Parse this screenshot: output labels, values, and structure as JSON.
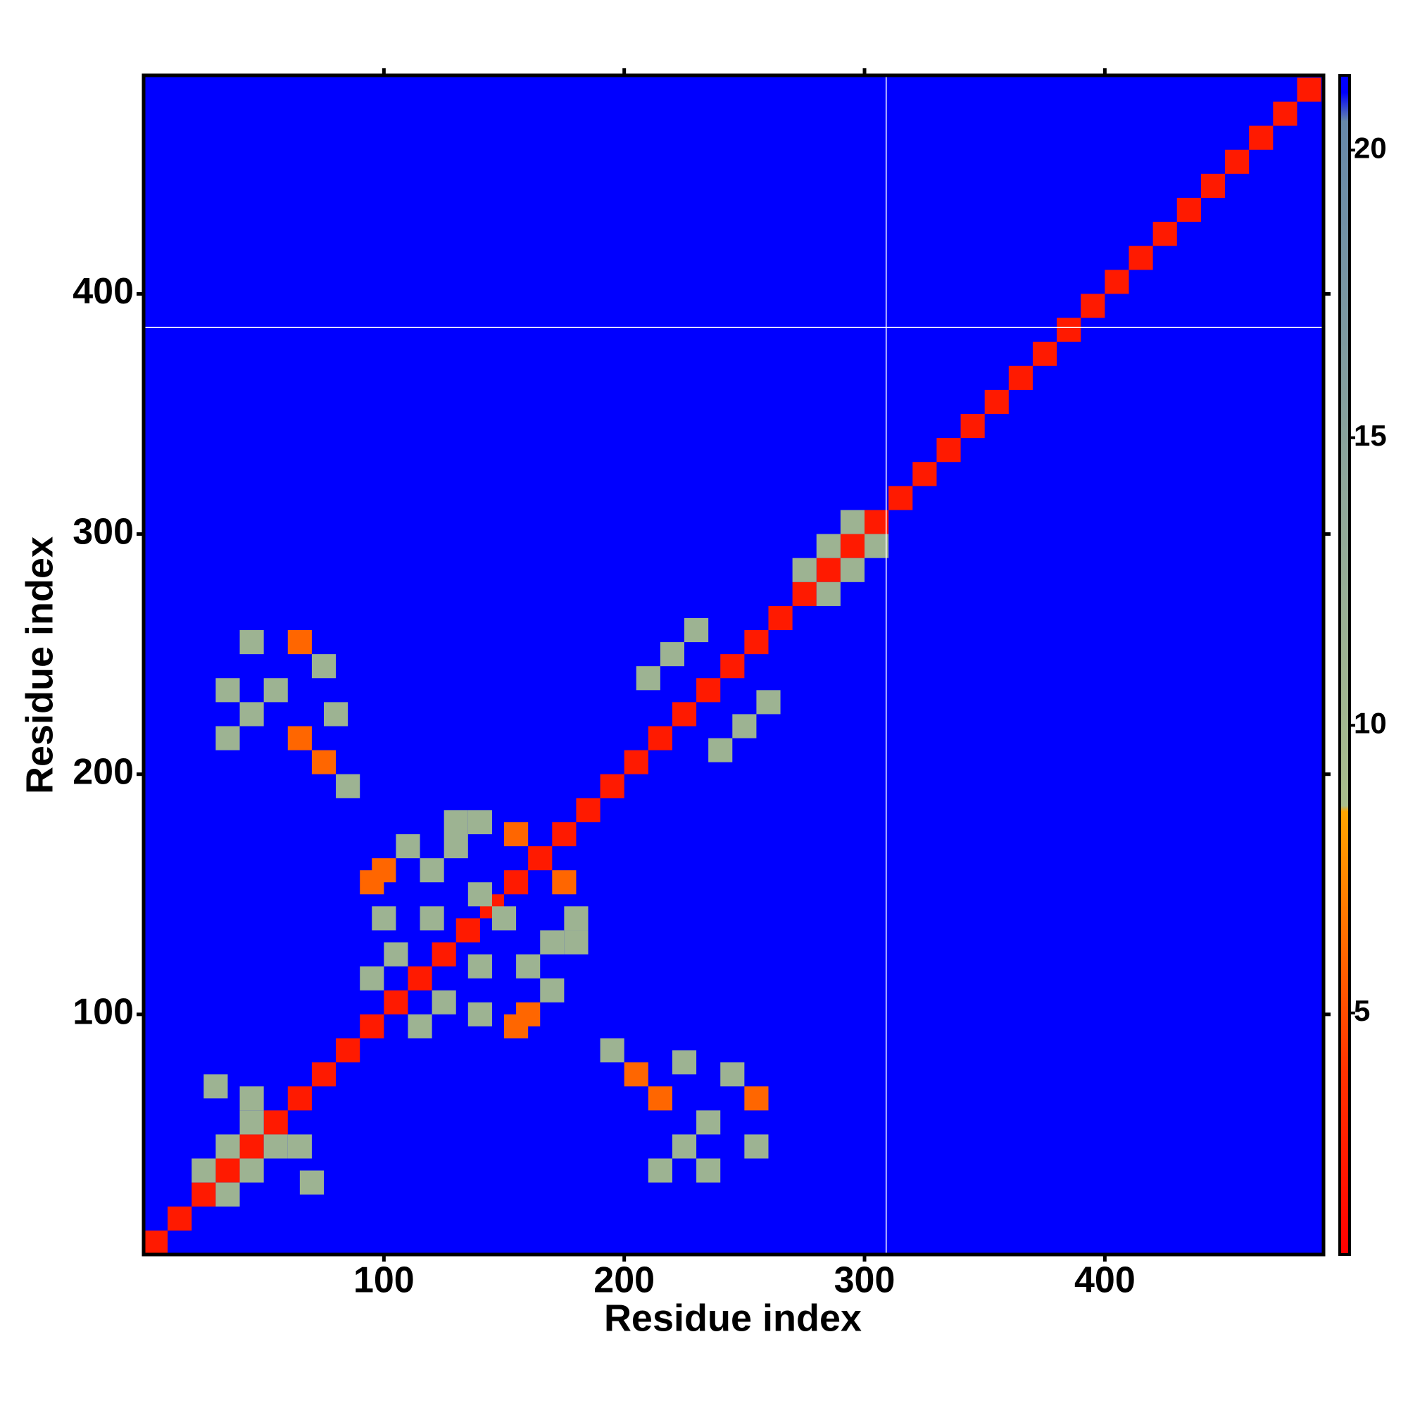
{
  "chart_data": {
    "type": "heatmap",
    "xlabel": "Residue index",
    "ylabel": "Residue index",
    "xlim": [
      0,
      491
    ],
    "ylim": [
      0,
      491
    ],
    "xticks": [
      100,
      200,
      300,
      400
    ],
    "yticks": [
      100,
      200,
      300,
      400
    ],
    "background": 21,
    "colorscale": [
      [
        0,
        "#ff0000"
      ],
      [
        4,
        "#ff3300"
      ],
      [
        8.5,
        "#ffa500"
      ],
      [
        8.6,
        "#a9bd8c"
      ],
      [
        14,
        "#8fa79a"
      ],
      [
        20.5,
        "#6688aa"
      ],
      [
        21,
        "#0000ff"
      ]
    ],
    "clim": [
      0.8,
      21.3
    ],
    "cticks": [
      5,
      10,
      15,
      20
    ],
    "x_gaps": [
      309
    ],
    "y_gaps": [
      386
    ],
    "cells": [
      [
        5,
        5,
        2
      ],
      [
        15,
        15,
        2
      ],
      [
        25,
        25,
        2
      ],
      [
        35,
        35,
        2
      ],
      [
        45,
        45,
        2
      ],
      [
        55,
        55,
        2
      ],
      [
        65,
        65,
        2
      ],
      [
        75,
        75,
        2
      ],
      [
        85,
        85,
        2
      ],
      [
        95,
        95,
        2
      ],
      [
        105,
        105,
        2
      ],
      [
        115,
        115,
        2
      ],
      [
        125,
        125,
        2
      ],
      [
        135,
        135,
        2
      ],
      [
        145,
        145,
        2
      ],
      [
        155,
        155,
        2
      ],
      [
        165,
        165,
        2
      ],
      [
        175,
        175,
        2
      ],
      [
        185,
        185,
        2
      ],
      [
        195,
        195,
        2
      ],
      [
        205,
        205,
        2
      ],
      [
        215,
        215,
        2
      ],
      [
        225,
        225,
        2
      ],
      [
        235,
        235,
        2
      ],
      [
        245,
        245,
        2
      ],
      [
        255,
        255,
        2
      ],
      [
        265,
        265,
        2
      ],
      [
        275,
        275,
        2
      ],
      [
        285,
        285,
        2
      ],
      [
        295,
        295,
        2
      ],
      [
        305,
        305,
        2
      ],
      [
        315,
        315,
        2
      ],
      [
        325,
        325,
        2
      ],
      [
        335,
        335,
        2
      ],
      [
        345,
        345,
        2
      ],
      [
        355,
        355,
        2
      ],
      [
        365,
        365,
        2
      ],
      [
        375,
        375,
        2
      ],
      [
        385,
        385,
        2
      ],
      [
        395,
        395,
        2
      ],
      [
        405,
        405,
        2
      ],
      [
        415,
        415,
        2
      ],
      [
        425,
        425,
        2
      ],
      [
        435,
        435,
        2
      ],
      [
        445,
        445,
        2
      ],
      [
        455,
        455,
        2
      ],
      [
        465,
        465,
        2
      ],
      [
        475,
        475,
        2
      ],
      [
        485,
        485,
        2
      ],
      [
        285,
        275,
        11
      ],
      [
        275,
        285,
        11
      ],
      [
        295,
        285,
        11
      ],
      [
        285,
        295,
        11
      ],
      [
        305,
        295,
        11
      ],
      [
        295,
        305,
        11
      ],
      [
        35,
        25,
        11
      ],
      [
        25,
        35,
        11
      ],
      [
        45,
        35,
        11
      ],
      [
        35,
        45,
        11
      ],
      [
        55,
        45,
        11
      ],
      [
        45,
        55,
        11
      ],
      [
        45,
        65,
        11
      ],
      [
        65,
        45,
        11
      ],
      [
        70,
        30,
        11
      ],
      [
        30,
        70,
        11
      ],
      [
        35,
        235,
        11
      ],
      [
        45,
        225,
        11
      ],
      [
        45,
        255,
        11
      ],
      [
        65,
        255,
        6
      ],
      [
        75,
        245,
        11
      ],
      [
        80,
        225,
        11
      ],
      [
        65,
        215,
        6
      ],
      [
        75,
        205,
        6
      ],
      [
        85,
        195,
        11
      ],
      [
        35,
        215,
        11
      ],
      [
        55,
        235,
        11
      ],
      [
        235,
        35,
        11
      ],
      [
        225,
        45,
        11
      ],
      [
        255,
        45,
        11
      ],
      [
        255,
        65,
        6
      ],
      [
        245,
        75,
        11
      ],
      [
        225,
        80,
        11
      ],
      [
        215,
        65,
        6
      ],
      [
        205,
        75,
        6
      ],
      [
        195,
        85,
        11
      ],
      [
        215,
        35,
        11
      ],
      [
        235,
        55,
        11
      ],
      [
        95,
        155,
        6
      ],
      [
        155,
        95,
        6
      ],
      [
        155,
        175,
        6
      ],
      [
        175,
        155,
        6
      ],
      [
        160,
        100,
        6
      ],
      [
        100,
        160,
        6
      ],
      [
        105,
        125,
        11
      ],
      [
        125,
        105,
        11
      ],
      [
        115,
        95,
        11
      ],
      [
        95,
        115,
        11
      ],
      [
        110,
        170,
        11
      ],
      [
        170,
        110,
        11
      ],
      [
        120,
        160,
        11
      ],
      [
        160,
        120,
        11
      ],
      [
        130,
        180,
        11
      ],
      [
        180,
        130,
        11
      ],
      [
        140,
        150,
        11
      ],
      [
        150,
        140,
        11
      ],
      [
        120,
        140,
        11
      ],
      [
        140,
        120,
        11
      ],
      [
        100,
        140,
        11
      ],
      [
        140,
        100,
        11
      ],
      [
        180,
        140,
        11
      ],
      [
        140,
        180,
        11
      ],
      [
        170,
        130,
        11
      ],
      [
        130,
        170,
        11
      ],
      [
        210,
        240,
        11
      ],
      [
        240,
        210,
        11
      ],
      [
        220,
        250,
        11
      ],
      [
        250,
        220,
        11
      ],
      [
        230,
        260,
        11
      ],
      [
        260,
        230,
        11
      ]
    ]
  }
}
